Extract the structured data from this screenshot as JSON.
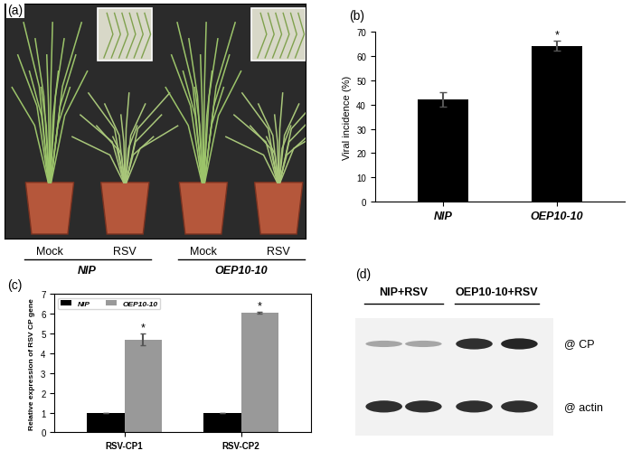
{
  "chart_data": [
    {
      "type": "bar",
      "label": "(b)",
      "ylabel": "Viral incidence (%)",
      "categories": [
        "NIP",
        "OEP10-10"
      ],
      "values": [
        42,
        64
      ],
      "errors": [
        3,
        2
      ],
      "color": "#000000",
      "ylim": [
        0,
        70
      ],
      "yticks": [
        0,
        10,
        20,
        30,
        40,
        50,
        60,
        70
      ],
      "annotations": [
        {
          "category": "OEP10-10",
          "text": "*"
        }
      ]
    },
    {
      "type": "bar",
      "label": "(c)",
      "ylabel": "Relative expression of RSV CP gene",
      "categories": [
        "RSV-CP1",
        "RSV-CP2"
      ],
      "series": [
        {
          "name": "NIP",
          "color": "#000000",
          "values": [
            1,
            1
          ],
          "errors": [
            0,
            0
          ]
        },
        {
          "name": "OEP10-10",
          "color": "#999999",
          "values": [
            4.7,
            6.05
          ],
          "errors": [
            0.3,
            0.05
          ]
        }
      ],
      "ylim": [
        0,
        7
      ],
      "yticks": [
        0,
        1,
        2,
        3,
        4,
        5,
        6,
        7
      ],
      "legend": "upper left",
      "annotations": [
        {
          "series": "OEP10-10",
          "category": "RSV-CP1",
          "text": "*"
        },
        {
          "series": "OEP10-10",
          "category": "RSV-CP2",
          "text": "*"
        }
      ]
    }
  ],
  "panel_a": {
    "label": "(a)",
    "groups": [
      {
        "name": "NIP",
        "treatments": [
          "Mock",
          "RSV"
        ]
      },
      {
        "name": "OEP10-10",
        "treatments": [
          "Mock",
          "RSV"
        ]
      }
    ]
  },
  "panel_d": {
    "label": "(d)",
    "groups": [
      "NIP+RSV",
      "OEP10-10+RSV"
    ],
    "bands": [
      "@ CP",
      "@ actin"
    ]
  }
}
